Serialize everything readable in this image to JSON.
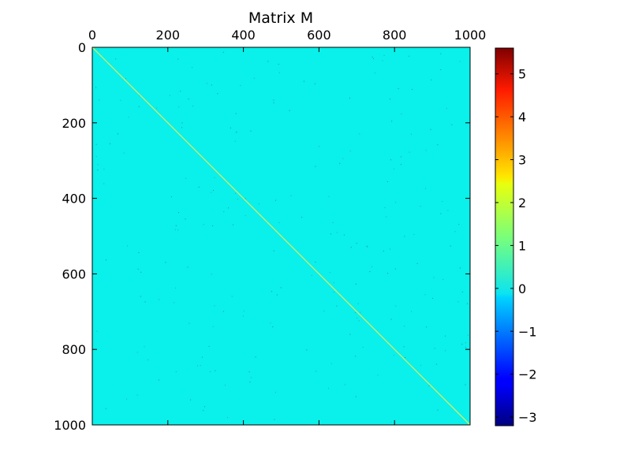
{
  "chart_data": {
    "type": "heatmap",
    "title": "Matrix M",
    "xlabel": "",
    "ylabel": "",
    "matrix_size": [
      1000,
      1000
    ],
    "x_axis_position": "top",
    "xlim": [
      0,
      1000
    ],
    "ylim": [
      1000,
      0
    ],
    "x_ticks": [
      "0",
      "200",
      "400",
      "600",
      "800",
      "1000"
    ],
    "y_ticks": [
      "0",
      "200",
      "400",
      "600",
      "800",
      "1000"
    ],
    "x_tick_values": [
      0,
      200,
      400,
      600,
      800,
      1000
    ],
    "y_tick_values": [
      0,
      200,
      400,
      600,
      800,
      1000
    ],
    "colormap": "jet",
    "background_value": 0.0,
    "diagonal_value": 2.3,
    "description_pattern": "near-zero matrix with a bright main diagonal and sparse scattered small off-diagonal entries",
    "colorbar": {
      "min": -3.2,
      "max": 5.6,
      "ticks": [
        "−3",
        "−2",
        "−1",
        "0",
        "1",
        "2",
        "3",
        "4",
        "5"
      ],
      "tick_values": [
        -3,
        -2,
        -1,
        0,
        1,
        2,
        3,
        4,
        5
      ]
    },
    "colors": {
      "background_cell": "#0af0ea",
      "diagonal": "#d8f060",
      "frame": "#000000"
    },
    "grid": false
  }
}
